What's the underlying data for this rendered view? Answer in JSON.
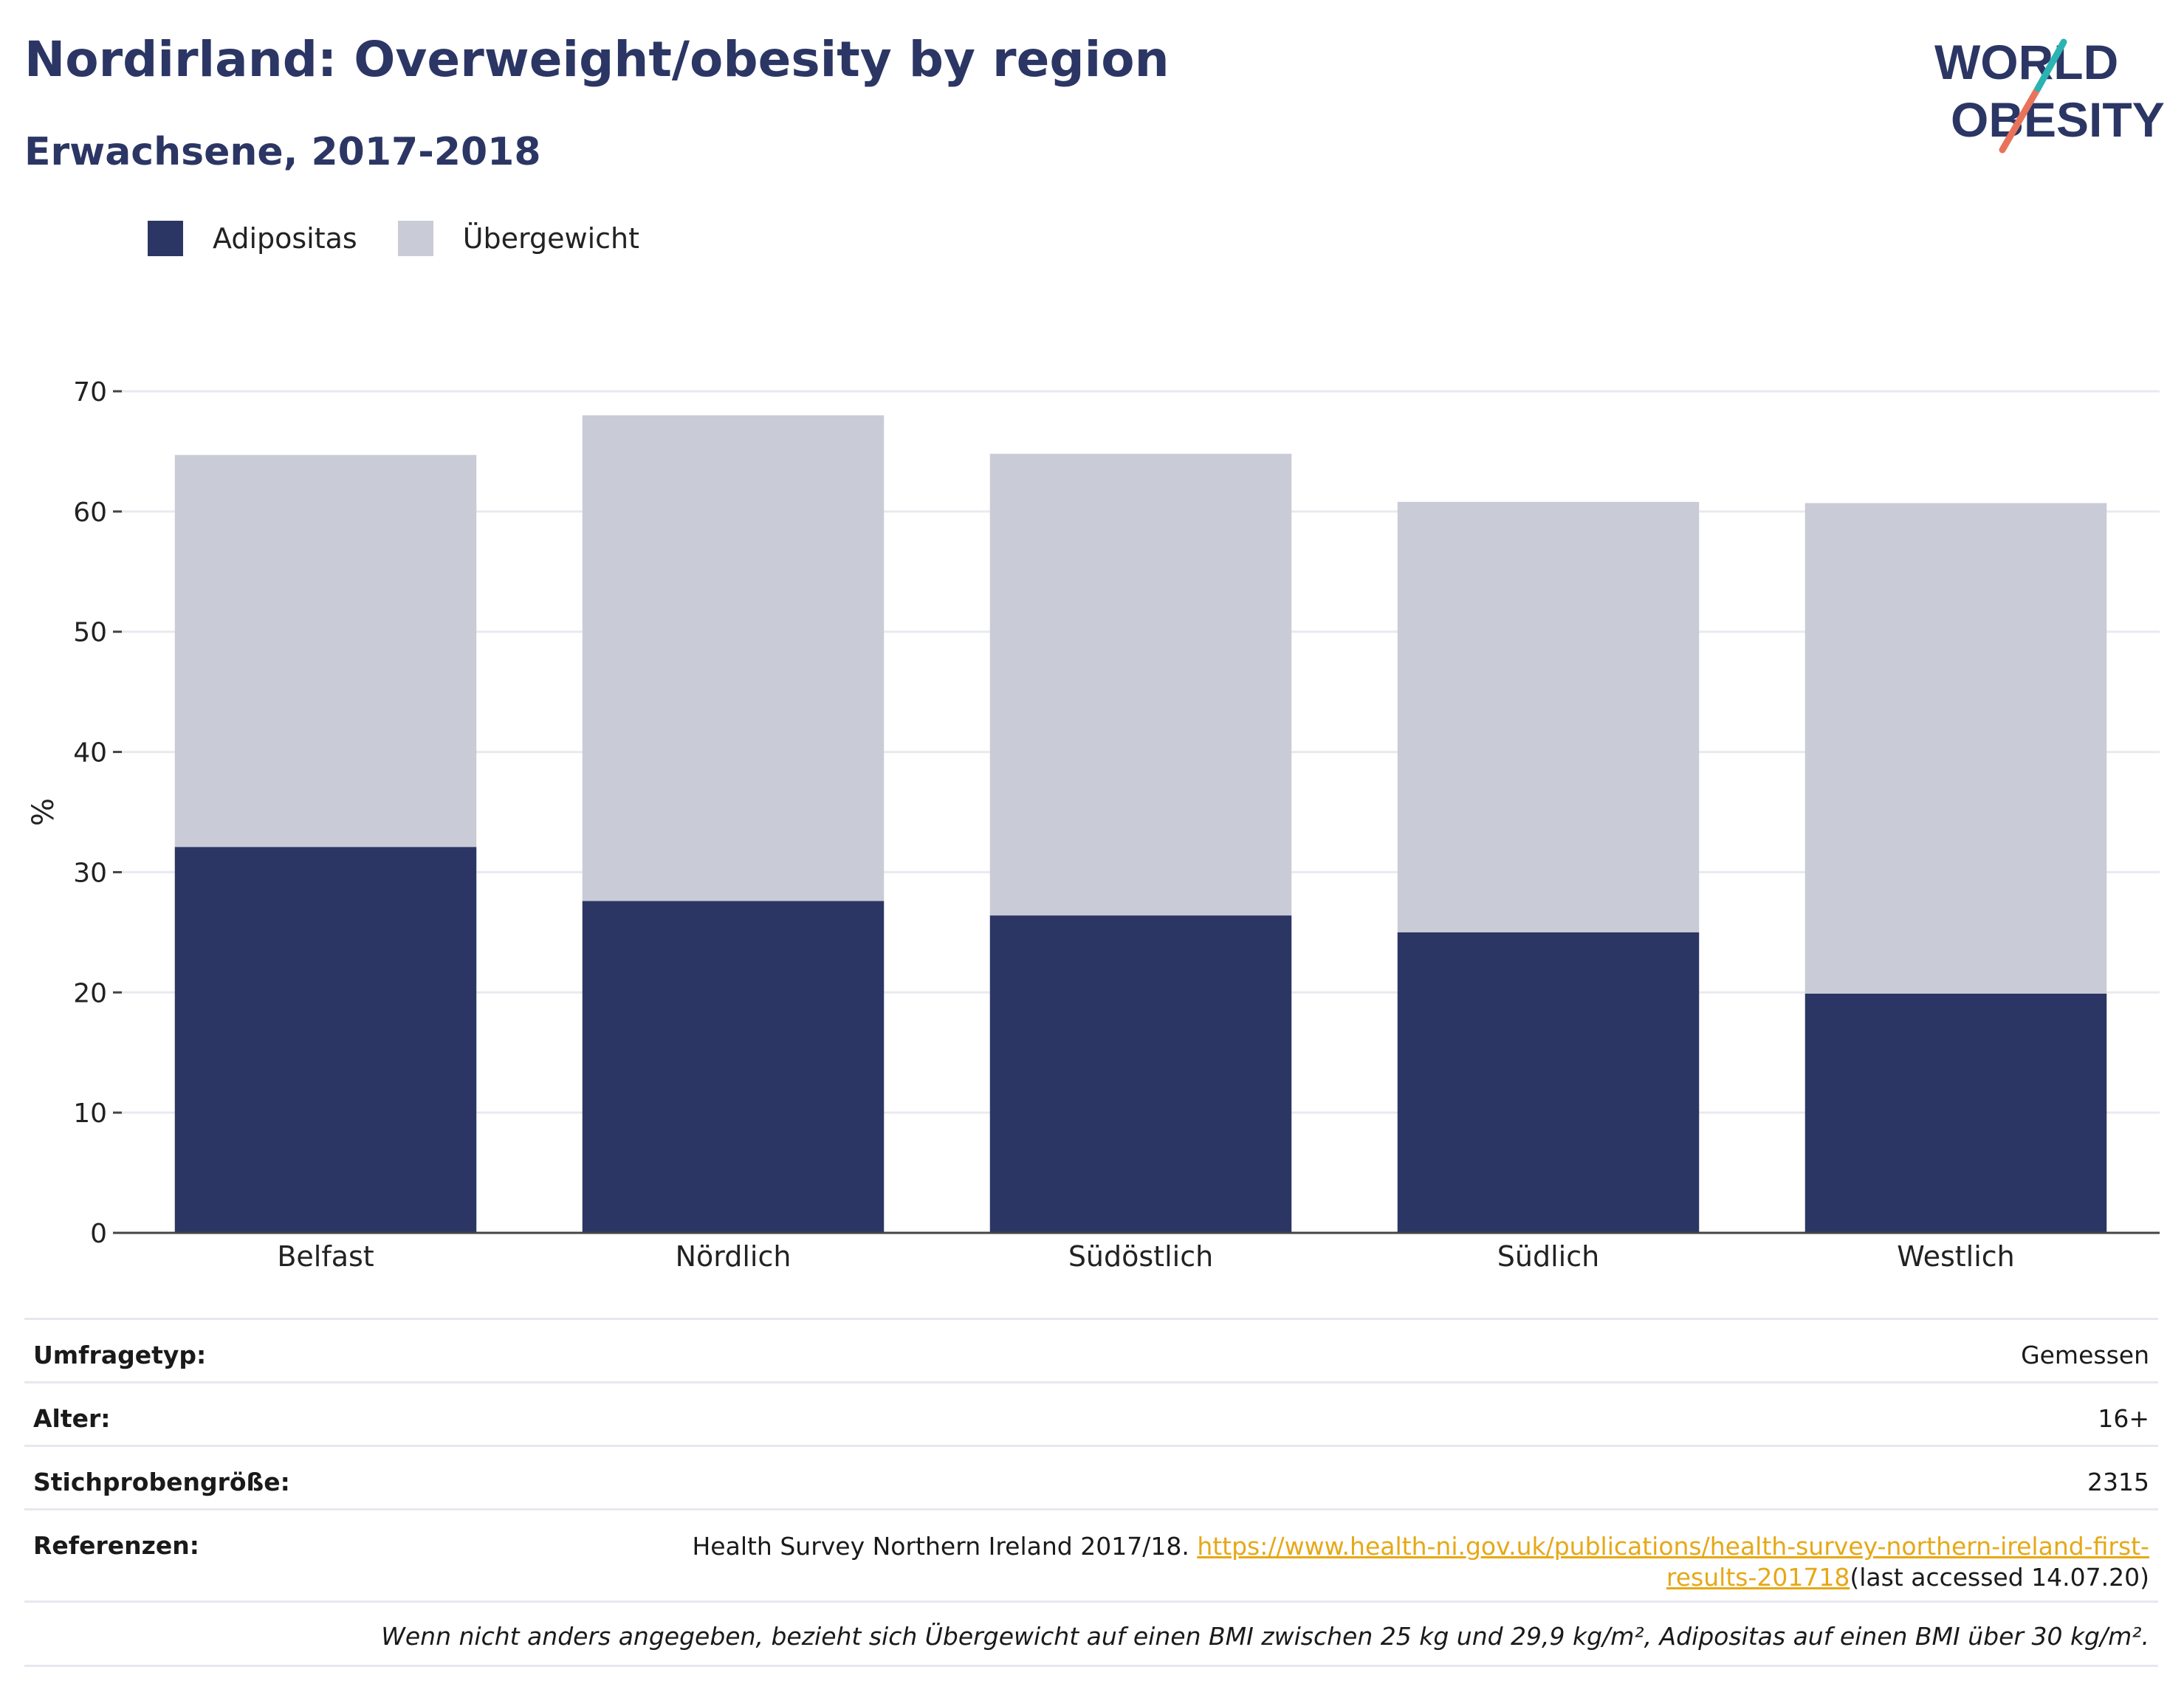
{
  "header": {
    "title": "Nordirland: Overweight/obesity by region",
    "subtitle": "Erwachsene, 2017-2018"
  },
  "logo": {
    "line1": "WORLD",
    "line2": "OBESITY",
    "icon": "slash-mark-icon"
  },
  "colors": {
    "obesity": "#2b3664",
    "overweight": "#c9cbd6",
    "accent_teal": "#2bb3b3",
    "accent_coral": "#e8735a",
    "link": "#e6a817"
  },
  "chart_data": {
    "type": "bar",
    "stacked": true,
    "categories": [
      "Belfast",
      "Nördlich",
      "Südöstlich",
      "Südlich",
      "Westlich"
    ],
    "series": [
      {
        "name": "Adipositas",
        "values": [
          32.1,
          27.6,
          26.4,
          25.0,
          19.9
        ]
      },
      {
        "name": "Übergewicht",
        "values": [
          32.6,
          40.4,
          38.4,
          35.8,
          40.8
        ]
      }
    ],
    "ylabel": "%",
    "xlabel": "",
    "ylim": [
      0,
      70
    ],
    "yticks": [
      0,
      10,
      20,
      30,
      40,
      50,
      60,
      70
    ],
    "grid": true,
    "legend_position": "top-left"
  },
  "info": {
    "survey_type_label": "Umfragetyp:",
    "survey_type_value": "Gemessen",
    "age_label": "Alter:",
    "age_value": "16+",
    "sample_label": "Stichprobengröße:",
    "sample_value": "2315",
    "references_label": "Referenzen:",
    "references_text": "Health Survey Northern Ireland 2017/18.",
    "references_link": "https://www.health-ni.gov.uk/publications/health-survey-northern-ireland-first-results-201718",
    "references_suffix": "(last accessed 14.07.20)",
    "note": "Wenn nicht anders angegeben, bezieht sich Übergewicht auf einen BMI zwischen 25 kg und 29,9 kg/m², Adipositas auf einen BMI über 30 kg/m²."
  }
}
